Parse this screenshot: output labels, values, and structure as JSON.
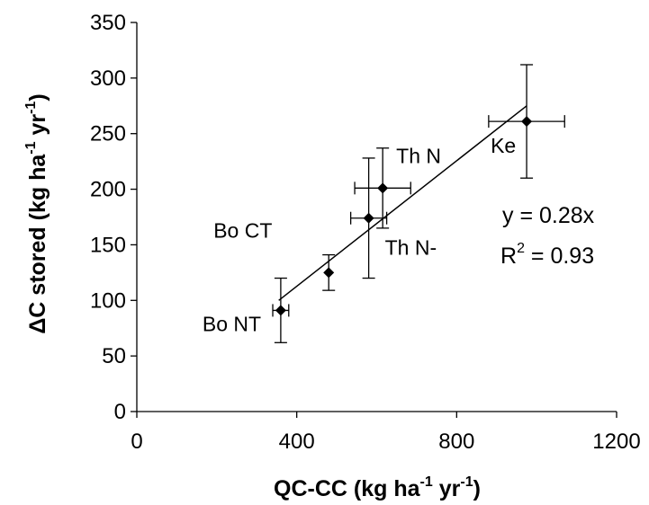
{
  "chart_data": {
    "type": "scatter",
    "xlabel_main": "QC-CC (kg ha",
    "xlabel_exp1": "-1",
    "xlabel_mid": " yr",
    "xlabel_exp2": "-1",
    "xlabel_end": ")",
    "ylabel_main": "ΔC stored (kg ha",
    "ylabel_exp1": "-1",
    "ylabel_mid": " yr",
    "ylabel_exp2": "-1",
    "ylabel_end": ")",
    "xlim": [
      0,
      1200
    ],
    "ylim": [
      0,
      350
    ],
    "x_ticks": [
      0,
      400,
      800,
      1200
    ],
    "y_ticks": [
      0,
      50,
      100,
      150,
      200,
      250,
      300,
      350
    ],
    "grid": false,
    "points": [
      {
        "label": "Bo NT",
        "x": 360,
        "y": 91,
        "x_err": 20,
        "y_err": 29
      },
      {
        "label": "Bo CT",
        "x": 480,
        "y": 125,
        "x_err": 0,
        "y_err": 16
      },
      {
        "label": "Th N-",
        "x": 580,
        "y": 174,
        "x_err": 45,
        "y_err": 54
      },
      {
        "label": "Th N",
        "x": 615,
        "y": 201,
        "x_err": 70,
        "y_err": 36
      },
      {
        "label": "Ke",
        "x": 975,
        "y": 261,
        "x_err": 95,
        "y_err": 51
      }
    ],
    "trendline": {
      "x": [
        355,
        975
      ],
      "y": [
        100,
        275
      ]
    },
    "equation": "y = 0.28x",
    "r2_main": "R",
    "r2_exp": "2",
    "r2_value": " = 0.93"
  }
}
